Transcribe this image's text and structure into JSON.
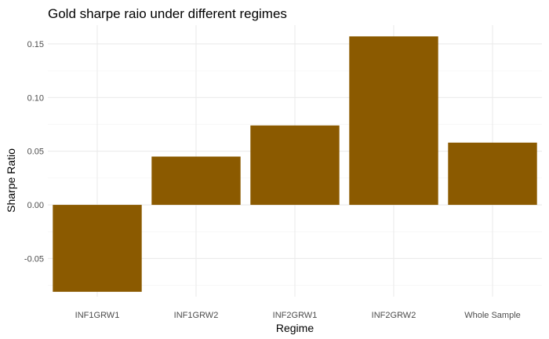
{
  "chart_data": {
    "type": "bar",
    "title": "Gold sharpe raio under different regimes",
    "xlabel": "Regime",
    "ylabel": "Sharpe Ratio",
    "categories": [
      "INF1GRW1",
      "INF1GRW2",
      "INF2GRW1",
      "INF2GRW2",
      "Whole Sample"
    ],
    "values": [
      -0.081,
      0.045,
      0.074,
      0.157,
      0.058
    ],
    "ylim": [
      -0.0855,
      0.1675
    ],
    "yticks": [
      -0.05,
      0.0,
      0.05,
      0.1,
      0.15
    ],
    "ytick_labels": [
      "-0.05",
      "0.00",
      "0.05",
      "0.10",
      "0.15"
    ],
    "bar_color": "#8B5A00",
    "grid": true,
    "legend": "none"
  }
}
